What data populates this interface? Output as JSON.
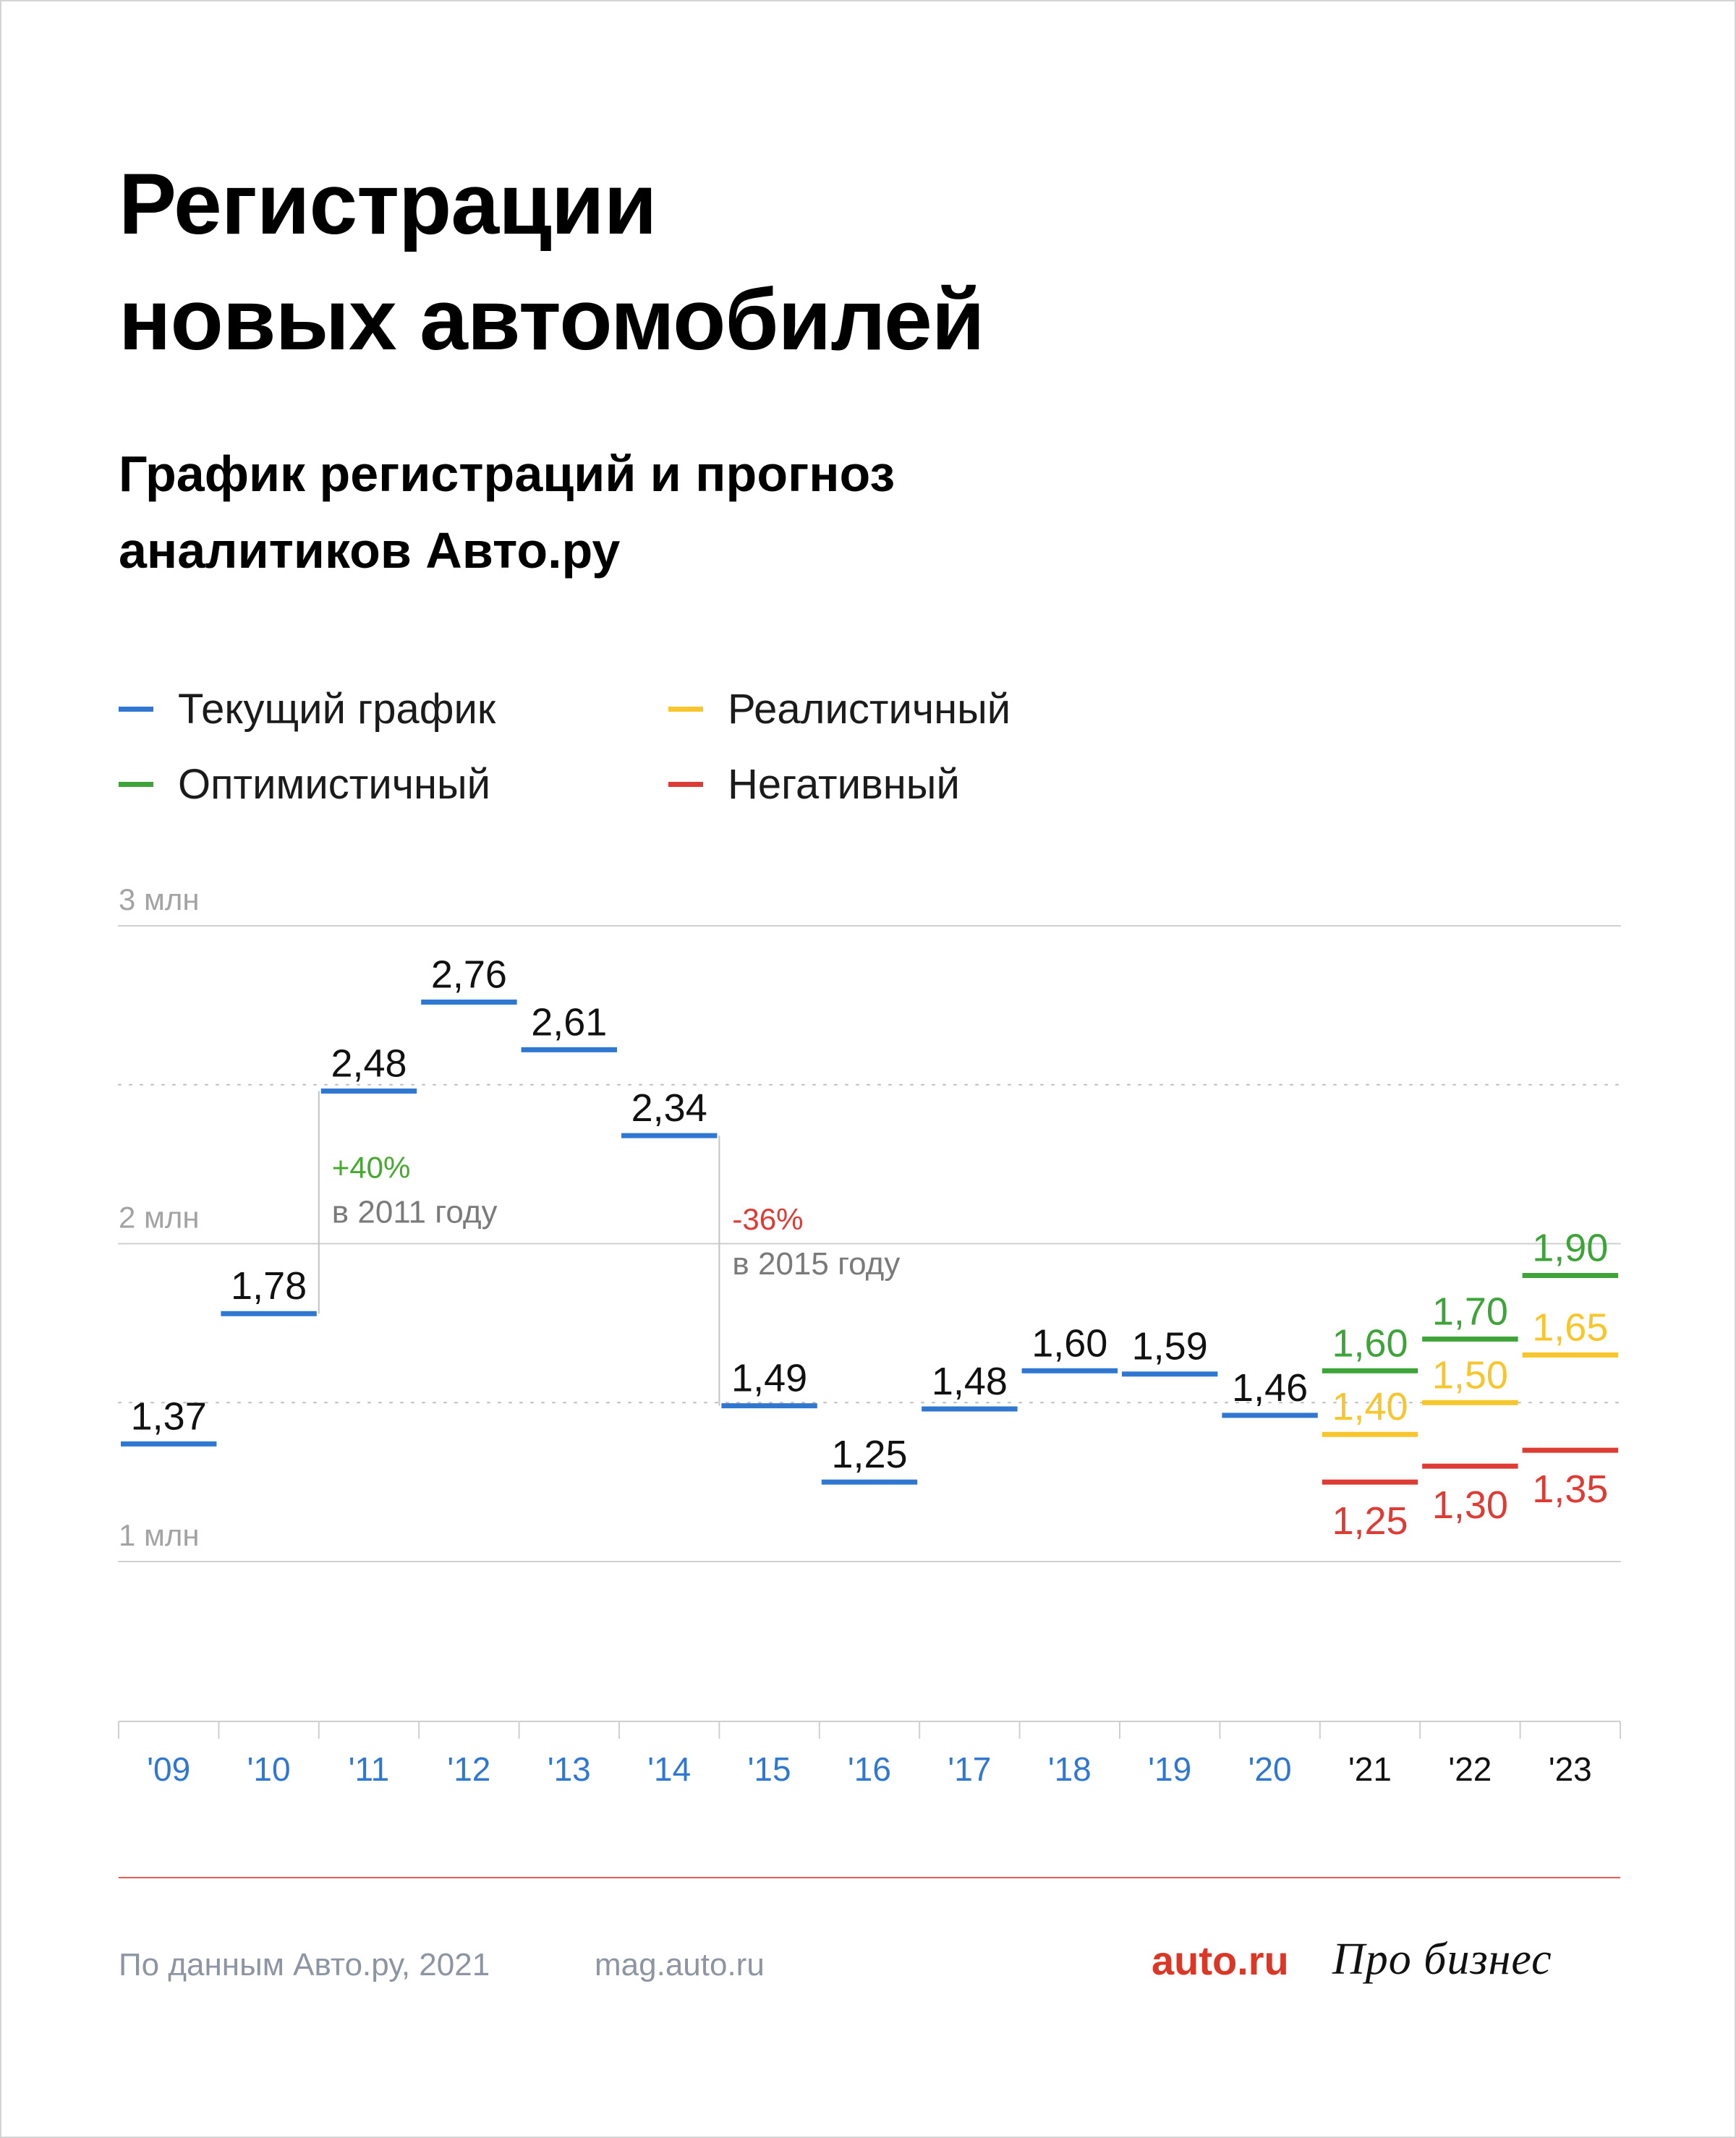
{
  "header": {
    "title_line1": "Регистрации",
    "title_line2": "новых автомобилей",
    "subtitle_line1": "График регистраций и прогноз",
    "subtitle_line2": "аналитиков Авто.ру"
  },
  "legend": [
    {
      "label": "Текущий график",
      "color": "#2f77d0"
    },
    {
      "label": "Реалистичный",
      "color": "#f7c52c"
    },
    {
      "label": "Оптимистичный",
      "color": "#3ea43a"
    },
    {
      "label": "Негативный",
      "color": "#de3b35"
    }
  ],
  "chart_data": {
    "type": "line",
    "subtype": "step-levels",
    "y_ticks": [
      {
        "value": 3,
        "label": "3 млн",
        "style": "solid"
      },
      {
        "value": 2.5,
        "label": "",
        "style": "dotted"
      },
      {
        "value": 2,
        "label": "2 млн",
        "style": "solid"
      },
      {
        "value": 1.5,
        "label": "",
        "style": "dotted"
      },
      {
        "value": 1,
        "label": "1 млн",
        "style": "solid"
      }
    ],
    "ylim": [
      0.5,
      3.0
    ],
    "categories": [
      "'09",
      "'10",
      "'11",
      "'12",
      "'13",
      "'14",
      "'15",
      "'16",
      "'17",
      "'18",
      "'19",
      "'20",
      "'21",
      "'22",
      "'23"
    ],
    "category_colors": [
      "#2f77d0",
      "#2f77d0",
      "#2f77d0",
      "#2f77d0",
      "#2f77d0",
      "#2f77d0",
      "#2f77d0",
      "#2f77d0",
      "#2f77d0",
      "#2f77d0",
      "#2f77d0",
      "#2f77d0",
      "#111111",
      "#111111",
      "#111111"
    ],
    "series": [
      {
        "name": "Текущий график",
        "color": "#2f77d0",
        "label_color": "#111111",
        "points": [
          {
            "x": "'09",
            "y": 1.37,
            "label": "1,37"
          },
          {
            "x": "'10",
            "y": 1.78,
            "label": "1,78"
          },
          {
            "x": "'11",
            "y": 2.48,
            "label": "2,48"
          },
          {
            "x": "'12",
            "y": 2.76,
            "label": "2,76"
          },
          {
            "x": "'13",
            "y": 2.61,
            "label": "2,61"
          },
          {
            "x": "'14",
            "y": 2.34,
            "label": "2,34"
          },
          {
            "x": "'15",
            "y": 1.49,
            "label": "1,49"
          },
          {
            "x": "'16",
            "y": 1.25,
            "label": "1,25"
          },
          {
            "x": "'17",
            "y": 1.48,
            "label": "1,48"
          },
          {
            "x": "'18",
            "y": 1.6,
            "label": "1,60"
          },
          {
            "x": "'19",
            "y": 1.59,
            "label": "1,59"
          },
          {
            "x": "'20",
            "y": 1.46,
            "label": "1,46"
          }
        ]
      },
      {
        "name": "Оптимистичный",
        "color": "#3ea43a",
        "label_color": "#3ea43a",
        "points": [
          {
            "x": "'21",
            "y": 1.6,
            "label": "1,60"
          },
          {
            "x": "'22",
            "y": 1.7,
            "label": "1,70"
          },
          {
            "x": "'23",
            "y": 1.9,
            "label": "1,90"
          }
        ]
      },
      {
        "name": "Реалистичный",
        "color": "#f7c52c",
        "label_color": "#f7c52c",
        "points": [
          {
            "x": "'21",
            "y": 1.4,
            "label": "1,40"
          },
          {
            "x": "'22",
            "y": 1.5,
            "label": "1,50"
          },
          {
            "x": "'23",
            "y": 1.65,
            "label": "1,65"
          }
        ]
      },
      {
        "name": "Негативный",
        "color": "#de3b35",
        "label_color": "#de3b35",
        "label_position": "below",
        "points": [
          {
            "x": "'21",
            "y": 1.25,
            "label": "1,25"
          },
          {
            "x": "'22",
            "y": 1.3,
            "label": "1,30"
          },
          {
            "x": "'23",
            "y": 1.35,
            "label": "1,35"
          }
        ]
      }
    ],
    "annotations": [
      {
        "from": "'10",
        "to": "'11",
        "pct": "+40%",
        "pct_color": "#46a82f",
        "text": "в 2011 году"
      },
      {
        "from": "'14",
        "to": "'15",
        "pct": "-36%",
        "pct_color": "#de3b35",
        "text": "в 2015 году"
      }
    ],
    "grid": true,
    "legend_position": "top"
  },
  "footer": {
    "source": "По данным Авто.ру, 2021",
    "site": "mag.auto.ru",
    "logo_auto": "auto.ru",
    "logo_pro": "Про бизнес"
  }
}
